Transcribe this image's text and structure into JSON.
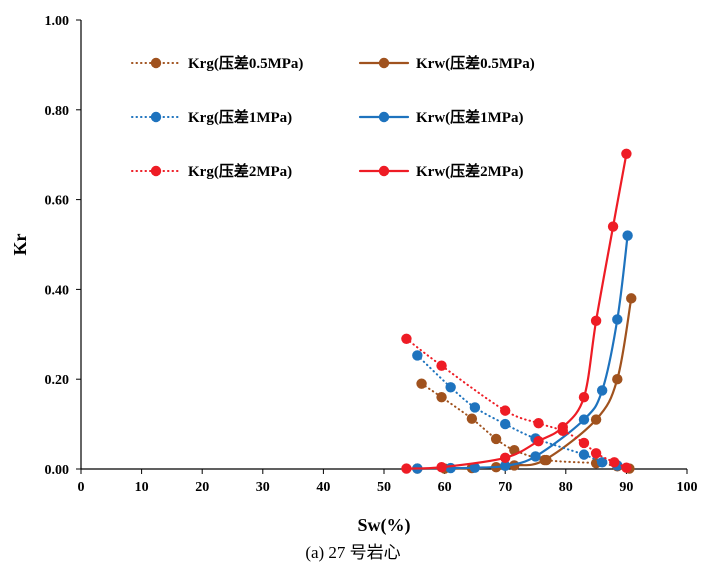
{
  "caption": "(a) 27 号岩心",
  "chart_data": {
    "type": "line",
    "title": "",
    "xlabel": "Sw(%)",
    "ylabel": "Kr",
    "xlim": [
      0,
      100
    ],
    "ylim": [
      0,
      1.0
    ],
    "x_ticks": [
      0,
      10,
      20,
      30,
      40,
      50,
      60,
      70,
      80,
      90,
      100
    ],
    "y_ticks": [
      0.0,
      0.2,
      0.4,
      0.6,
      0.8,
      1.0
    ],
    "y_tick_labels": [
      "0.00",
      "0.20",
      "0.40",
      "0.60",
      "0.80",
      "1.00"
    ],
    "grid": false,
    "legend_position": "top-left",
    "series": [
      {
        "name": "Krg(压差0.5MPa)",
        "color": "#A0521E",
        "style": "dotted",
        "x": [
          56.2,
          59.5,
          64.5,
          68.5,
          71.5,
          76.8,
          85.0,
          88.5,
          90.5
        ],
        "y": [
          0.19,
          0.16,
          0.112,
          0.067,
          0.042,
          0.02,
          0.013,
          0.006,
          0.001
        ]
      },
      {
        "name": "Krw(压差0.5MPa)",
        "color": "#A0521E",
        "style": "solid",
        "x": [
          55.5,
          60.0,
          64.5,
          68.5,
          71.5,
          76.5,
          85.0,
          88.5,
          90.8
        ],
        "y": [
          0.001,
          0.001,
          0.002,
          0.004,
          0.008,
          0.02,
          0.11,
          0.2,
          0.38
        ]
      },
      {
        "name": "Krg(压差1MPa)",
        "color": "#1E73BE",
        "style": "dotted",
        "x": [
          55.5,
          61.0,
          65.0,
          70.0,
          75.0,
          83.0,
          86.0,
          88.5
        ],
        "y": [
          0.253,
          0.182,
          0.137,
          0.1,
          0.068,
          0.032,
          0.015,
          0.008
        ]
      },
      {
        "name": "Krw(压差1MPa)",
        "color": "#1E73BE",
        "style": "solid",
        "x": [
          55.5,
          61.0,
          65.0,
          70.0,
          75.0,
          83.0,
          86.0,
          88.5,
          90.2
        ],
        "y": [
          0.001,
          0.002,
          0.003,
          0.007,
          0.028,
          0.11,
          0.175,
          0.333,
          0.52
        ]
      },
      {
        "name": "Krg(压差2MPa)",
        "color": "#EE1C25",
        "style": "dotted",
        "x": [
          53.7,
          59.5,
          70.0,
          75.5,
          79.5,
          83.0,
          85.0,
          88.0,
          90.0
        ],
        "y": [
          0.29,
          0.23,
          0.13,
          0.102,
          0.085,
          0.058,
          0.035,
          0.015,
          0.003
        ]
      },
      {
        "name": "Krw(压差2MPa)",
        "color": "#EE1C25",
        "style": "solid",
        "x": [
          53.7,
          59.5,
          70.0,
          75.5,
          79.5,
          83.0,
          85.0,
          87.8,
          90.0
        ],
        "y": [
          0.001,
          0.004,
          0.025,
          0.062,
          0.093,
          0.16,
          0.33,
          0.54,
          0.702
        ]
      }
    ]
  }
}
